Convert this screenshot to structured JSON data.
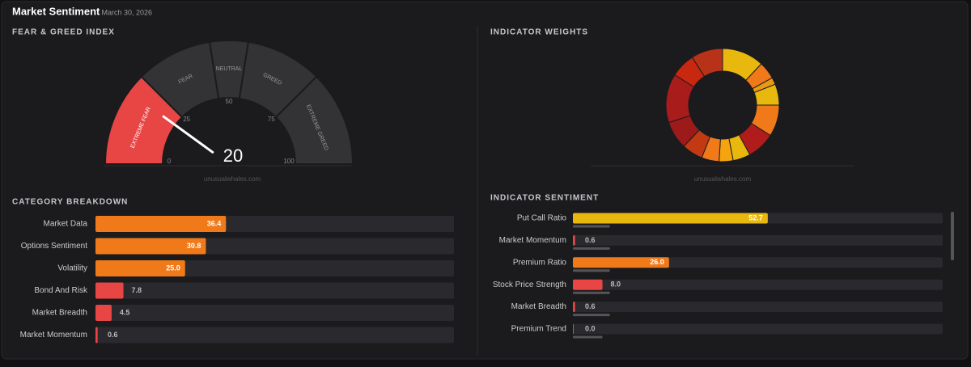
{
  "header": {
    "title": "Market Sentiment",
    "date": "- March 30, 2026"
  },
  "gauge": {
    "title": "FEAR & GREED INDEX",
    "value": 20,
    "range": [
      0,
      100
    ],
    "ticks": [
      0,
      25,
      50,
      75,
      100
    ],
    "watermark": "unusualwhales.com",
    "zones": [
      {
        "label": "EXTREME FEAR",
        "from": 0,
        "to": 25,
        "color": "#e84545"
      },
      {
        "label": "FEAR",
        "from": 25,
        "to": 45,
        "color": "#333336"
      },
      {
        "label": "NEUTRAL",
        "from": 45,
        "to": 55,
        "color": "#333336"
      },
      {
        "label": "GREED",
        "from": 55,
        "to": 75,
        "color": "#333336"
      },
      {
        "label": "EXTREME GREED",
        "from": 75,
        "to": 100,
        "color": "#333336"
      }
    ]
  },
  "categories": {
    "title": "CATEGORY BREAKDOWN",
    "range": [
      0,
      100
    ],
    "items": [
      {
        "name": "Market Data",
        "value": 36.4,
        "color": "#f07a1a"
      },
      {
        "name": "Options Sentiment",
        "value": 30.8,
        "color": "#f07a1a"
      },
      {
        "name": "Volatility",
        "value": 25,
        "value_label": "25.0",
        "color": "#f07a1a"
      },
      {
        "name": "Bond And Risk",
        "value": 7.8,
        "color": "#e84545"
      },
      {
        "name": "Market Breadth",
        "value": 4.5,
        "color": "#e84545"
      },
      {
        "name": "Market Momentum",
        "value": 0.6,
        "color": "#e84545"
      }
    ]
  },
  "weights": {
    "title": "INDICATOR WEIGHTS",
    "watermark": "unusualwhales.com",
    "slices": [
      {
        "value": 12,
        "color": "#e8b80e"
      },
      {
        "value": 5,
        "color": "#f07a1a"
      },
      {
        "value": 2,
        "color": "#e89a10"
      },
      {
        "value": 6,
        "color": "#e8b80e"
      },
      {
        "value": 9,
        "color": "#f07a1a"
      },
      {
        "value": 8,
        "color": "#b01c1c"
      },
      {
        "value": 5,
        "color": "#e8b80e"
      },
      {
        "value": 4,
        "color": "#f5a30e"
      },
      {
        "value": 5,
        "color": "#f07a1a"
      },
      {
        "value": 6,
        "color": "#c23a12"
      },
      {
        "value": 8,
        "color": "#9c1a1a"
      },
      {
        "value": 14,
        "color": "#a81c1c"
      },
      {
        "value": 7,
        "color": "#c8280f"
      },
      {
        "value": 9,
        "color": "#b8321a"
      }
    ]
  },
  "sentiment": {
    "title": "INDICATOR SENTIMENT",
    "range": [
      0,
      100
    ],
    "items": [
      {
        "name": "Put Call Ratio",
        "value": 52.7,
        "sub": 10,
        "color": "#e8b80e"
      },
      {
        "name": "Market Momentum",
        "value": 0.6,
        "sub": 10,
        "color": "#e84545"
      },
      {
        "name": "Premium Ratio",
        "value": 26,
        "value_label": "26.0",
        "sub": 10,
        "color": "#f07a1a"
      },
      {
        "name": "Stock Price Strength",
        "value": 8,
        "value_label": "8.0",
        "sub": 10,
        "color": "#e84545"
      },
      {
        "name": "Market Breadth",
        "value": 0.6,
        "sub": 10,
        "color": "#e84545"
      },
      {
        "name": "Premium Trend",
        "value": 0,
        "value_label": "0.0",
        "sub": 8,
        "color": "#e84545"
      }
    ]
  }
}
